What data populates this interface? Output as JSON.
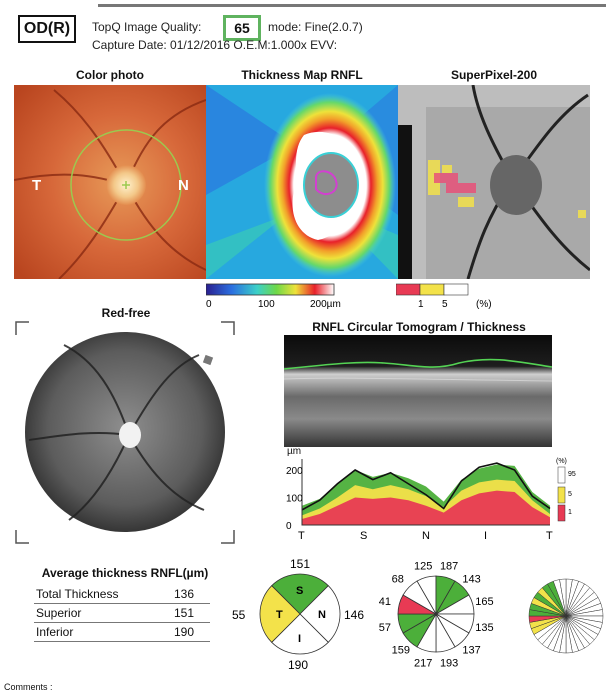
{
  "header": {
    "eye": "OD(R)",
    "quality_label": "TopQ Image Quality:",
    "quality_value": "65",
    "mode": "mode: Fine(2.0.7)",
    "capture": "Capture Date: 01/12/2016  O.E.M:1.000x   EVV:"
  },
  "panels": {
    "color_photo": {
      "title": "Color photo",
      "temporal": "T",
      "nasal": "N"
    },
    "thickness_map": {
      "title": "Thickness Map RNFL",
      "scale": [
        "0",
        "100",
        "200µm"
      ]
    },
    "superpixel": {
      "title": "SuperPixel-200",
      "scale": [
        "1",
        "5",
        "(%)"
      ]
    },
    "red_free": {
      "title": "Red-free"
    },
    "tomogram": {
      "title": "RNFL Circular Tomogram / Thickness"
    }
  },
  "colors": {
    "green": "#4caf3a",
    "yellow": "#f3e24a",
    "red": "#e83a54",
    "white": "#ffffff"
  },
  "chart_data": {
    "type": "area",
    "ylabel": "µm",
    "y_ticks": [
      "200",
      "100",
      "0"
    ],
    "ylim": [
      0,
      240
    ],
    "x_ticks": [
      "T",
      "S",
      "N",
      "I",
      "T"
    ],
    "legend": {
      "title": "(%)",
      "entries": [
        "95",
        "5",
        "1"
      ]
    },
    "series": [
      {
        "values": [
          70,
          95,
          150,
          200,
          175,
          190,
          170,
          140,
          85,
          165,
          205,
          220,
          215,
          120,
          70
        ]
      },
      {
        "values": [
          35,
          60,
          100,
          145,
          130,
          145,
          130,
          105,
          65,
          125,
          155,
          165,
          160,
          90,
          40
        ]
      },
      {
        "values": [
          22,
          40,
          70,
          100,
          95,
          100,
          90,
          70,
          45,
          90,
          115,
          125,
          120,
          65,
          28
        ]
      }
    ],
    "patient_line": [
      55,
      90,
      150,
      200,
      165,
      190,
      150,
      110,
      60,
      160,
      210,
      225,
      200,
      105,
      60
    ]
  },
  "average_thickness": {
    "title": "Average thickness RNFL(µm)",
    "rows": [
      {
        "label": "Total Thickness",
        "value": "136"
      },
      {
        "label": "Superior",
        "value": "151"
      },
      {
        "label": "Inferior",
        "value": "190"
      }
    ]
  },
  "quadrant": {
    "S": "S",
    "T": "T",
    "N": "N",
    "I": "I",
    "top": "151",
    "left": "55",
    "right": "146",
    "bottom": "190"
  },
  "clock": {
    "values": [
      "125",
      "187",
      "143",
      "165",
      "135",
      "137",
      "193",
      "217",
      "159",
      "57",
      "41",
      "68"
    ]
  },
  "comments": "Comments :"
}
